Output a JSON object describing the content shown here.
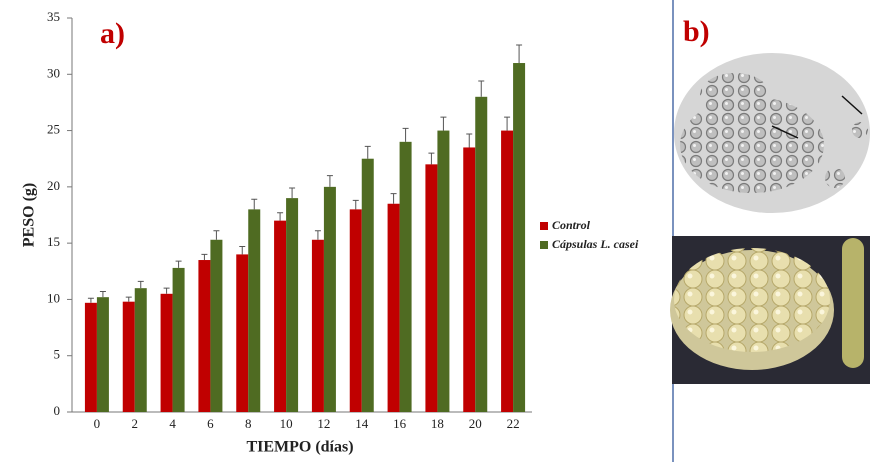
{
  "chart_data": {
    "type": "bar",
    "annotations": [
      "a)",
      "b)"
    ],
    "x_label": "TIEMPO (días)",
    "y_label": "PESO (g)",
    "categories": [
      "0",
      "2",
      "4",
      "6",
      "8",
      "10",
      "12",
      "14",
      "16",
      "18",
      "20",
      "22"
    ],
    "series": [
      {
        "name": "Control",
        "color": "#c00000",
        "values": [
          9.7,
          9.8,
          10.5,
          13.5,
          14,
          17,
          15.3,
          18,
          18.5,
          22,
          23.5,
          25
        ],
        "errors": [
          0.4,
          0.4,
          0.5,
          0.5,
          0.7,
          0.7,
          0.8,
          0.8,
          0.9,
          1.0,
          1.2,
          1.2
        ]
      },
      {
        "name": "Cápsulas L. casei",
        "color": "#4f6b22",
        "values": [
          10.2,
          11,
          12.8,
          15.3,
          18,
          19,
          20,
          22.5,
          24,
          25,
          28,
          31
        ],
        "errors": [
          0.5,
          0.6,
          0.6,
          0.8,
          0.9,
          0.9,
          1.0,
          1.1,
          1.2,
          1.2,
          1.4,
          1.6
        ]
      }
    ],
    "ylim": [
      0,
      35
    ],
    "yticks": [
      0,
      5,
      10,
      15,
      20,
      25,
      30,
      35
    ],
    "grid": false,
    "legend": "right"
  }
}
